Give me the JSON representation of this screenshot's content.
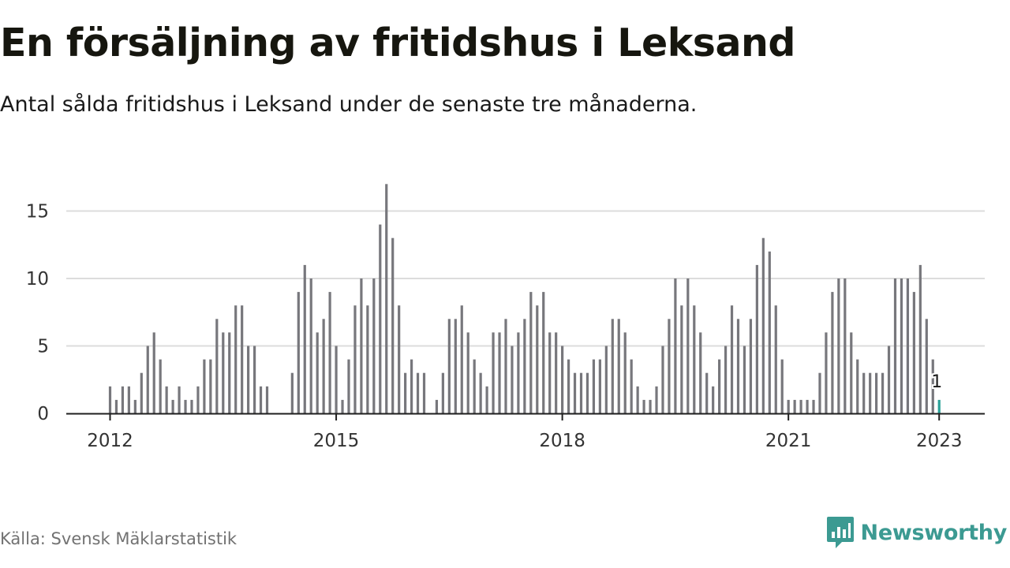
{
  "header": {
    "title": "En försäljning av fritidshus i Leksand",
    "subtitle": "Antal sålda fritidshus i Leksand under de senaste tre månaderna."
  },
  "footer": {
    "source": "Källa: Svensk Mäklarstatistik",
    "brand": "Newsworthy",
    "brand_icon": "newsworthy-logo-icon",
    "brand_color": "#3c9a92"
  },
  "chart_data": {
    "type": "bar",
    "ylim": [
      0,
      17
    ],
    "y_ticks": [
      0,
      5,
      10,
      15
    ],
    "x_tick_labels": [
      {
        "label": "2012",
        "at": "2012-01"
      },
      {
        "label": "2015",
        "at": "2015-01"
      },
      {
        "label": "2018",
        "at": "2018-01"
      },
      {
        "label": "2021",
        "at": "2021-01"
      },
      {
        "label": "2023",
        "at": "2023-01"
      }
    ],
    "grid": true,
    "bar_color": "#77777c",
    "highlight_color": "#2aa198",
    "highlight_label": "1",
    "start_month": "2012-01",
    "values": [
      2,
      1,
      2,
      2,
      1,
      3,
      5,
      6,
      4,
      2,
      1,
      2,
      1,
      1,
      2,
      4,
      4,
      7,
      6,
      6,
      8,
      8,
      5,
      5,
      2,
      2,
      null,
      null,
      null,
      3,
      9,
      11,
      10,
      6,
      7,
      9,
      5,
      1,
      4,
      8,
      10,
      8,
      10,
      14,
      17,
      13,
      8,
      3,
      4,
      3,
      3,
      null,
      1,
      3,
      7,
      7,
      8,
      6,
      4,
      3,
      2,
      6,
      6,
      7,
      5,
      6,
      7,
      9,
      8,
      9,
      6,
      6,
      5,
      4,
      3,
      3,
      3,
      4,
      4,
      5,
      7,
      7,
      6,
      4,
      2,
      1,
      1,
      2,
      5,
      7,
      10,
      8,
      10,
      8,
      6,
      3,
      2,
      4,
      5,
      8,
      7,
      5,
      7,
      11,
      13,
      12,
      8,
      4,
      1,
      1,
      1,
      1,
      1,
      3,
      6,
      9,
      10,
      10,
      6,
      4,
      3,
      3,
      3,
      3,
      5,
      10,
      10,
      10,
      9,
      11,
      7,
      4,
      1
    ]
  }
}
